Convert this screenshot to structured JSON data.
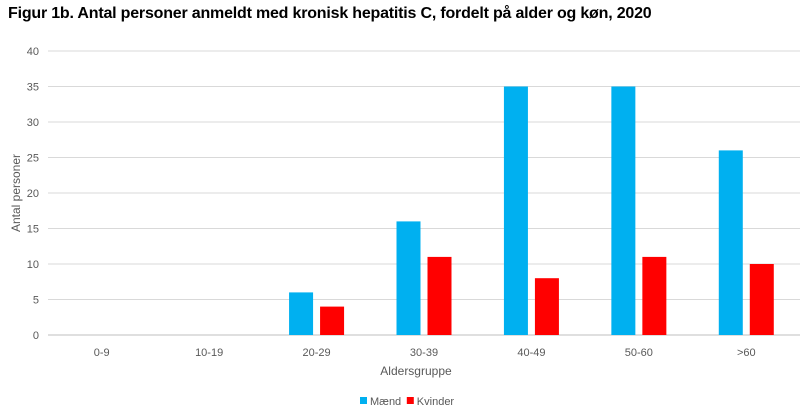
{
  "chart_data": {
    "type": "bar",
    "title": "Figur 1b. Antal personer anmeldt med kronisk hepatitis C, fordelt på alder og køn, 2020",
    "xlabel": "Aldersgruppe",
    "ylabel": "Antal personer",
    "ylim": [
      0,
      40
    ],
    "yticks": [
      0,
      5,
      10,
      15,
      20,
      25,
      30,
      35,
      40
    ],
    "grid": true,
    "legend_position": "bottom",
    "categories": [
      "0-9",
      "10-19",
      "20-29",
      "30-39",
      "40-49",
      "50-60",
      ">60"
    ],
    "series": [
      {
        "name": "Mænd",
        "color": "#00b0f0",
        "values": [
          0,
          0,
          6,
          16,
          35,
          35,
          26
        ]
      },
      {
        "name": "Kvinder",
        "color": "#ff0000",
        "values": [
          0,
          0,
          4,
          11,
          8,
          11,
          10
        ]
      }
    ]
  }
}
